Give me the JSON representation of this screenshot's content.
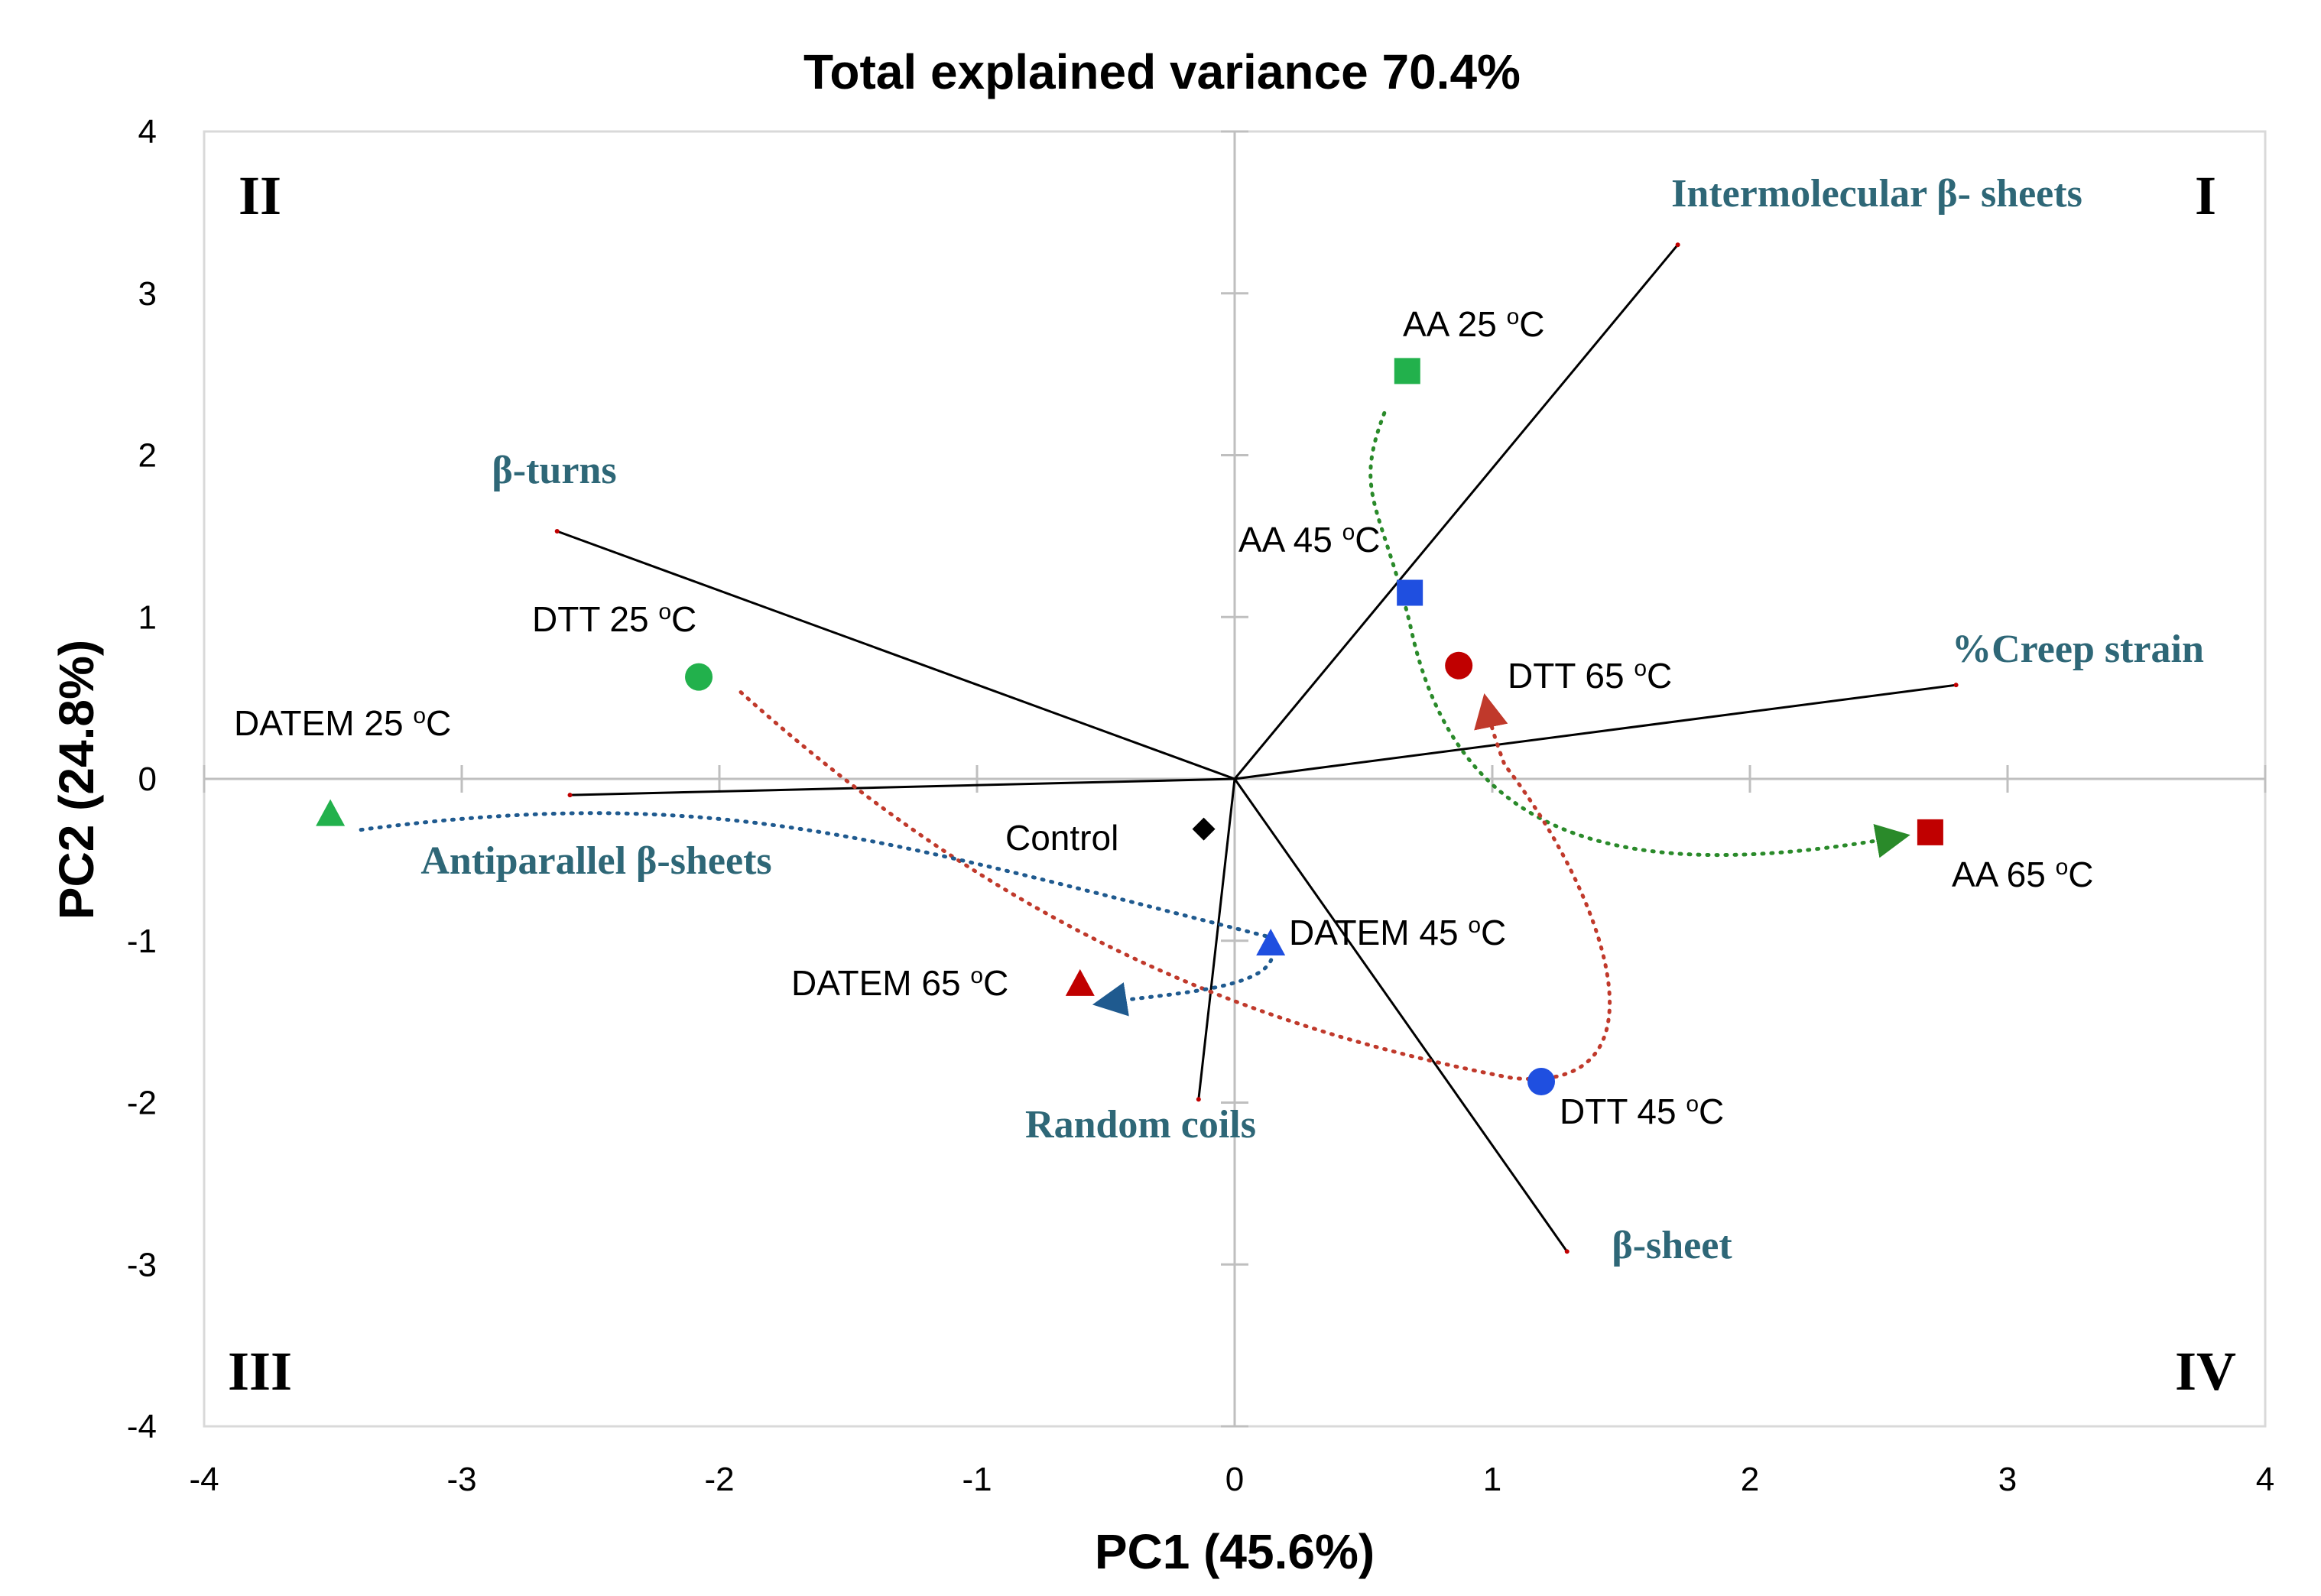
{
  "chart_data": {
    "type": "scatter",
    "subtype": "pca-biplot",
    "title": "Total explained variance 70.4%",
    "xlabel": "PC1 (45.6%)",
    "ylabel": "PC2 (24.8%)",
    "xlim": [
      -4,
      4
    ],
    "ylim": [
      -4,
      4
    ],
    "xticks": [
      -4,
      -3,
      -2,
      -1,
      0,
      1,
      2,
      3,
      4
    ],
    "yticks": [
      -4,
      -3,
      -2,
      -1,
      0,
      1,
      2,
      3,
      4
    ],
    "grid": false,
    "quadrants": [
      {
        "label": "I",
        "position": "top-right"
      },
      {
        "label": "II",
        "position": "top-left"
      },
      {
        "label": "III",
        "position": "bottom-left"
      },
      {
        "label": "IV",
        "position": "bottom-right"
      }
    ],
    "colors": {
      "green": "#22b14c",
      "blue": "#1f4fe0",
      "red": "#c00000",
      "black": "#000000",
      "loading_text": "#2e6777",
      "axis": "#bfbfbf",
      "green_path": "#2a8a2a",
      "red_path": "#c0392b",
      "blue_path": "#1f5a8f"
    },
    "points": [
      {
        "name": "AA 25",
        "unit": "oC",
        "x": 0.67,
        "y": 2.52,
        "shape": "square",
        "color": "green"
      },
      {
        "name": "AA 45",
        "unit": "oC",
        "x": 0.68,
        "y": 1.15,
        "shape": "square",
        "color": "blue"
      },
      {
        "name": "AA 65",
        "unit": "oC",
        "x": 2.7,
        "y": -0.33,
        "shape": "square",
        "color": "red"
      },
      {
        "name": "DTT 25",
        "unit": "oC",
        "x": -2.08,
        "y": 0.63,
        "shape": "circle",
        "color": "green"
      },
      {
        "name": "DTT 45",
        "unit": "oC",
        "x": 1.19,
        "y": -1.87,
        "shape": "circle",
        "color": "blue"
      },
      {
        "name": "DTT 65",
        "unit": "oC",
        "x": 0.87,
        "y": 0.7,
        "shape": "circle",
        "color": "red"
      },
      {
        "name": "DATEM 25",
        "unit": "oC",
        "x": -3.51,
        "y": -0.22,
        "shape": "triangle",
        "color": "green"
      },
      {
        "name": "DATEM 45",
        "unit": "oC",
        "x": 0.14,
        "y": -1.02,
        "shape": "triangle",
        "color": "blue"
      },
      {
        "name": "DATEM 65",
        "unit": "oC",
        "x": -0.6,
        "y": -1.27,
        "shape": "triangle",
        "color": "red"
      },
      {
        "name": "Control",
        "unit": "",
        "x": -0.12,
        "y": -0.31,
        "shape": "diamond",
        "color": "black"
      }
    ],
    "loadings": [
      {
        "name": "Intermolecular β- sheets",
        "x": 1.72,
        "y": 3.3
      },
      {
        "name": "β-turns",
        "x": -2.63,
        "y": 1.53
      },
      {
        "name": "%Creep strain",
        "x": 2.8,
        "y": 0.58
      },
      {
        "name": "Antiparallel β-sheets",
        "x": -2.58,
        "y": -0.1
      },
      {
        "name": "Random coils",
        "x": -0.14,
        "y": -1.98
      },
      {
        "name": "β-sheet",
        "x": 1.29,
        "y": -2.92
      }
    ],
    "trajectories": [
      {
        "series": "AA",
        "color": "green_path",
        "from": "AA 25",
        "via": "AA 45",
        "to": "AA 65"
      },
      {
        "series": "DTT",
        "color": "red_path",
        "from": "DTT 25",
        "via": "DTT 45",
        "to": "DTT 65"
      },
      {
        "series": "DATEM",
        "color": "blue_path",
        "from": "DATEM 25",
        "via": "DATEM 45",
        "to": "DATEM 65"
      }
    ]
  }
}
